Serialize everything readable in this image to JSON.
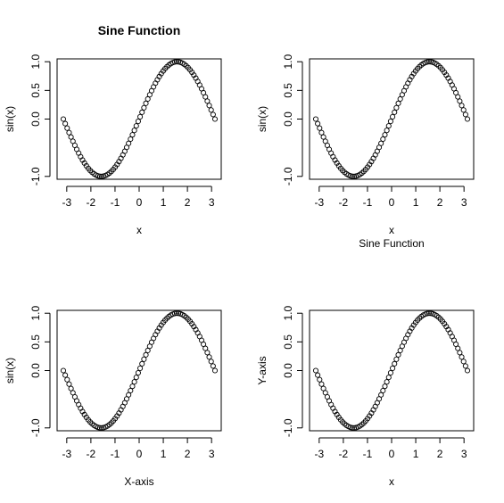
{
  "chart_data": [
    {
      "type": "scatter",
      "title": "Sine Function",
      "subtitle": "",
      "xlabel": "x",
      "ylabel": "sin(x)",
      "function": "sin",
      "x_range": [
        -3.14159,
        3.14159
      ],
      "n_points": 80,
      "x_ticks": [
        -3,
        -2,
        -1,
        0,
        1,
        2,
        3
      ],
      "y_ticks": [
        -1.0,
        0.0,
        0.5,
        1.0
      ],
      "y_tick_labels": [
        "-1.0",
        "0.0",
        "0.5",
        "1.0"
      ],
      "xlim": [
        -3.4,
        3.4
      ],
      "ylim": [
        -1.05,
        1.05
      ],
      "grid": false,
      "marker": "circle-open"
    },
    {
      "type": "scatter",
      "title": "",
      "subtitle": "Sine Function",
      "xlabel": "x",
      "ylabel": "sin(x)",
      "function": "sin",
      "x_range": [
        -3.14159,
        3.14159
      ],
      "n_points": 80,
      "x_ticks": [
        -3,
        -2,
        -1,
        0,
        1,
        2,
        3
      ],
      "y_ticks": [
        -1.0,
        0.0,
        0.5,
        1.0
      ],
      "y_tick_labels": [
        "-1.0",
        "0.0",
        "0.5",
        "1.0"
      ],
      "xlim": [
        -3.4,
        3.4
      ],
      "ylim": [
        -1.05,
        1.05
      ],
      "grid": false,
      "marker": "circle-open"
    },
    {
      "type": "scatter",
      "title": "",
      "subtitle": "",
      "xlabel": "X-axis",
      "ylabel": "sin(x)",
      "function": "sin",
      "x_range": [
        -3.14159,
        3.14159
      ],
      "n_points": 80,
      "x_ticks": [
        -3,
        -2,
        -1,
        0,
        1,
        2,
        3
      ],
      "y_ticks": [
        -1.0,
        0.0,
        0.5,
        1.0
      ],
      "y_tick_labels": [
        "-1.0",
        "0.0",
        "0.5",
        "1.0"
      ],
      "xlim": [
        -3.4,
        3.4
      ],
      "ylim": [
        -1.05,
        1.05
      ],
      "grid": false,
      "marker": "circle-open"
    },
    {
      "type": "scatter",
      "title": "",
      "subtitle": "",
      "xlabel": "x",
      "ylabel": "Y-axis",
      "function": "sin",
      "x_range": [
        -3.14159,
        3.14159
      ],
      "n_points": 80,
      "x_ticks": [
        -3,
        -2,
        -1,
        0,
        1,
        2,
        3
      ],
      "y_ticks": [
        -1.0,
        0.0,
        0.5,
        1.0
      ],
      "y_tick_labels": [
        "-1.0",
        "0.0",
        "0.5",
        "1.0"
      ],
      "xlim": [
        -3.4,
        3.4
      ],
      "ylim": [
        -1.05,
        1.05
      ],
      "grid": false,
      "marker": "circle-open"
    }
  ]
}
